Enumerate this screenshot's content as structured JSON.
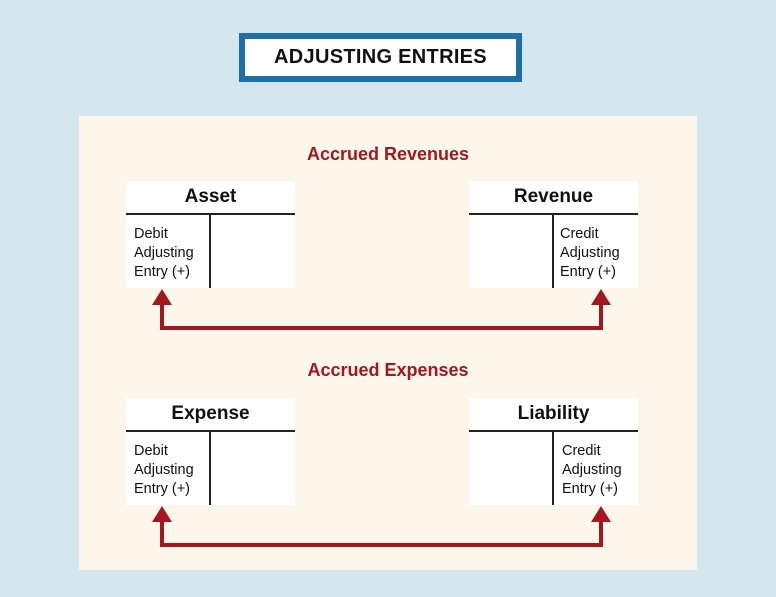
{
  "title": "ADJUSTING ENTRIES",
  "colors": {
    "background": "#d4e6ee",
    "panel": "#fdf6ea",
    "title_border": "#1e6fa8",
    "accent_red": "#a3171f"
  },
  "sections": [
    {
      "heading": "Accrued Revenues",
      "left_account": {
        "title": "Asset",
        "entry_lines": [
          "Debit",
          "Adjusting",
          "Entry (+)"
        ]
      },
      "right_account": {
        "title": "Revenue",
        "entry_lines": [
          "Credit",
          "Adjusting",
          "Entry (+)"
        ]
      }
    },
    {
      "heading": "Accrued Expenses",
      "left_account": {
        "title": "Expense",
        "entry_lines": [
          "Debit",
          "Adjusting",
          "Entry (+)"
        ]
      },
      "right_account": {
        "title": "Liability",
        "entry_lines": [
          "Credit",
          "Adjusting",
          "Entry (+)"
        ]
      }
    }
  ]
}
